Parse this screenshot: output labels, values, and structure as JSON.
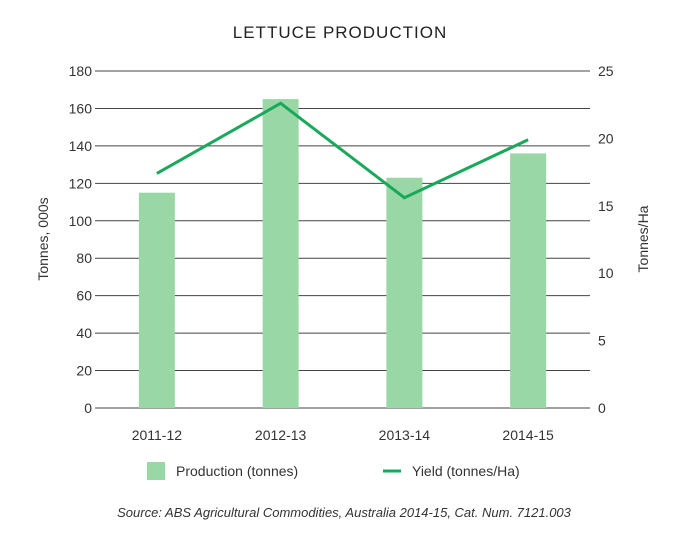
{
  "chart_data": {
    "type": "bar",
    "title": "LETTUCE PRODUCTION",
    "categories": [
      "2011-12",
      "2012-13",
      "2013-14",
      "2014-15"
    ],
    "series": [
      {
        "name": "Production (tonnes)",
        "type": "bar",
        "axis": "left",
        "values": [
          115,
          165,
          123,
          136
        ],
        "color": "#99d8a6"
      },
      {
        "name": "Yield (tonnes/Ha)",
        "type": "line",
        "axis": "right",
        "values": [
          17.4,
          22.6,
          15.6,
          19.9
        ],
        "color": "#1aa85a"
      }
    ],
    "ylabel": "Tonnes, 000s",
    "ylim": [
      0,
      180
    ],
    "yticks": [
      "0",
      "20",
      "40",
      "60",
      "80",
      "100",
      "120",
      "140",
      "160",
      "180"
    ],
    "y2label": "Tonnes/Ha",
    "y2lim": [
      0,
      25
    ],
    "y2ticks": [
      "0",
      "5",
      "10",
      "15",
      "20",
      "25"
    ],
    "grid": true,
    "legend": "bottom",
    "source": "Source: ABS Agricultural Commodities, Australia 2014-15, Cat. Num. 7121.003"
  }
}
